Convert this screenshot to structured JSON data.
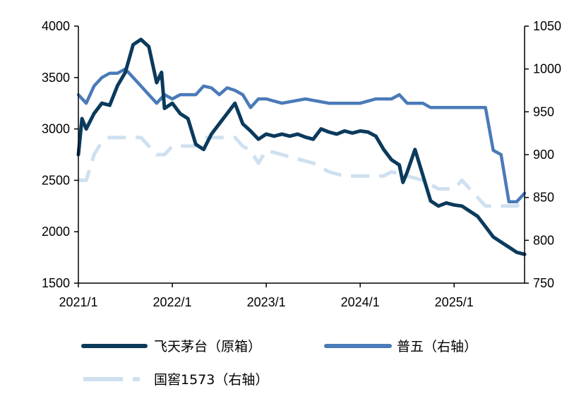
{
  "chart_data": {
    "type": "line",
    "title": "",
    "xlabel": "",
    "ylabel": "",
    "x_ticks": [
      "2021/1",
      "2022/1",
      "2023/1",
      "2024/1",
      "2025/1"
    ],
    "x_range": [
      "2021-01",
      "2025-10"
    ],
    "y_left": {
      "min": 1500,
      "max": 4000,
      "ticks": [
        "1500",
        "2000",
        "2500",
        "3000",
        "3500",
        "4000"
      ]
    },
    "y_right": {
      "min": 750,
      "max": 1050,
      "ticks": [
        "750",
        "800",
        "850",
        "900",
        "950",
        "1000",
        "1050"
      ]
    },
    "grid": false,
    "legend_position": "bottom",
    "series": [
      {
        "name": "飞天茅台（原箱）",
        "axis": "left",
        "color": "#0b3a5c",
        "style": "solid",
        "points": [
          [
            "2021-01",
            2750
          ],
          [
            "2021-01-15",
            3100
          ],
          [
            "2021-02",
            3000
          ],
          [
            "2021-03",
            3150
          ],
          [
            "2021-04",
            3250
          ],
          [
            "2021-05",
            3230
          ],
          [
            "2021-06",
            3420
          ],
          [
            "2021-07",
            3550
          ],
          [
            "2021-08",
            3820
          ],
          [
            "2021-09",
            3870
          ],
          [
            "2021-10",
            3800
          ],
          [
            "2021-11",
            3450
          ],
          [
            "2021-11-20",
            3550
          ],
          [
            "2021-12",
            3200
          ],
          [
            "2022-01",
            3250
          ],
          [
            "2022-02",
            3150
          ],
          [
            "2022-03",
            3100
          ],
          [
            "2022-04",
            2850
          ],
          [
            "2022-05",
            2800
          ],
          [
            "2022-06",
            2950
          ],
          [
            "2022-07",
            3050
          ],
          [
            "2022-08",
            3150
          ],
          [
            "2022-09",
            3250
          ],
          [
            "2022-10",
            3050
          ],
          [
            "2022-11",
            2980
          ],
          [
            "2022-12",
            2900
          ],
          [
            "2023-01",
            2950
          ],
          [
            "2023-02",
            2930
          ],
          [
            "2023-03",
            2950
          ],
          [
            "2023-04",
            2930
          ],
          [
            "2023-05",
            2950
          ],
          [
            "2023-06",
            2920
          ],
          [
            "2023-07",
            2900
          ],
          [
            "2023-08",
            3000
          ],
          [
            "2023-09",
            2970
          ],
          [
            "2023-10",
            2950
          ],
          [
            "2023-11",
            2980
          ],
          [
            "2023-12",
            2960
          ],
          [
            "2024-01",
            2980
          ],
          [
            "2024-02",
            2970
          ],
          [
            "2024-03",
            2930
          ],
          [
            "2024-04",
            2800
          ],
          [
            "2024-05",
            2700
          ],
          [
            "2024-06",
            2650
          ],
          [
            "2024-06-15",
            2480
          ],
          [
            "2024-07",
            2580
          ],
          [
            "2024-08",
            2800
          ],
          [
            "2024-09",
            2550
          ],
          [
            "2024-10",
            2300
          ],
          [
            "2024-11",
            2250
          ],
          [
            "2024-12",
            2280
          ],
          [
            "2025-01",
            2260
          ],
          [
            "2025-02",
            2250
          ],
          [
            "2025-03",
            2200
          ],
          [
            "2025-04",
            2150
          ],
          [
            "2025-05",
            2050
          ],
          [
            "2025-06",
            1950
          ],
          [
            "2025-07",
            1900
          ],
          [
            "2025-08",
            1850
          ],
          [
            "2025-09",
            1800
          ],
          [
            "2025-10",
            1780
          ]
        ]
      },
      {
        "name": "普五（右轴）",
        "axis": "right",
        "color": "#4a7ab8",
        "style": "solid",
        "points": [
          [
            "2021-01",
            970
          ],
          [
            "2021-02",
            960
          ],
          [
            "2021-03",
            980
          ],
          [
            "2021-04",
            990
          ],
          [
            "2021-05",
            995
          ],
          [
            "2021-06",
            995
          ],
          [
            "2021-07",
            1000
          ],
          [
            "2021-08",
            990
          ],
          [
            "2021-09",
            980
          ],
          [
            "2021-10",
            970
          ],
          [
            "2021-11",
            960
          ],
          [
            "2021-12",
            970
          ],
          [
            "2022-01",
            965
          ],
          [
            "2022-02",
            970
          ],
          [
            "2022-03",
            970
          ],
          [
            "2022-04",
            970
          ],
          [
            "2022-05",
            980
          ],
          [
            "2022-06",
            978
          ],
          [
            "2022-07",
            970
          ],
          [
            "2022-08",
            978
          ],
          [
            "2022-09",
            975
          ],
          [
            "2022-10",
            970
          ],
          [
            "2022-11",
            955
          ],
          [
            "2022-12",
            965
          ],
          [
            "2023-01",
            965
          ],
          [
            "2023-03",
            960
          ],
          [
            "2023-06",
            965
          ],
          [
            "2023-09",
            960
          ],
          [
            "2023-12",
            960
          ],
          [
            "2024-01",
            960
          ],
          [
            "2024-03",
            965
          ],
          [
            "2024-05",
            965
          ],
          [
            "2024-06",
            970
          ],
          [
            "2024-07",
            960
          ],
          [
            "2024-09",
            960
          ],
          [
            "2024-10",
            955
          ],
          [
            "2025-01",
            955
          ],
          [
            "2025-05",
            955
          ],
          [
            "2025-06",
            905
          ],
          [
            "2025-07",
            900
          ],
          [
            "2025-08",
            845
          ],
          [
            "2025-09",
            845
          ],
          [
            "2025-10",
            855
          ]
        ]
      },
      {
        "name": "国窖1573（右轴）",
        "axis": "right",
        "color": "#cfe0f0",
        "style": "dashed",
        "points": [
          [
            "2021-01",
            870
          ],
          [
            "2021-02",
            870
          ],
          [
            "2021-03",
            900
          ],
          [
            "2021-04",
            915
          ],
          [
            "2021-05",
            920
          ],
          [
            "2021-06",
            920
          ],
          [
            "2021-07",
            920
          ],
          [
            "2021-08",
            920
          ],
          [
            "2021-09",
            920
          ],
          [
            "2021-10",
            910
          ],
          [
            "2021-11",
            900
          ],
          [
            "2021-12",
            900
          ],
          [
            "2022-01",
            910
          ],
          [
            "2022-02",
            910
          ],
          [
            "2022-03",
            910
          ],
          [
            "2022-04",
            910
          ],
          [
            "2022-05",
            920
          ],
          [
            "2022-06",
            920
          ],
          [
            "2022-07",
            920
          ],
          [
            "2022-08",
            920
          ],
          [
            "2022-09",
            920
          ],
          [
            "2022-10",
            910
          ],
          [
            "2022-11",
            905
          ],
          [
            "2022-12",
            890
          ],
          [
            "2023-01",
            905
          ],
          [
            "2023-03",
            900
          ],
          [
            "2023-05",
            895
          ],
          [
            "2023-07",
            890
          ],
          [
            "2023-09",
            880
          ],
          [
            "2023-11",
            875
          ],
          [
            "2024-01",
            875
          ],
          [
            "2024-04",
            875
          ],
          [
            "2024-05",
            880
          ],
          [
            "2024-07",
            875
          ],
          [
            "2024-09",
            870
          ],
          [
            "2024-11",
            860
          ],
          [
            "2025-01",
            860
          ],
          [
            "2025-02",
            870
          ],
          [
            "2025-03",
            860
          ],
          [
            "2025-05",
            840
          ],
          [
            "2025-07",
            840
          ],
          [
            "2025-09",
            840
          ],
          [
            "2025-10",
            845
          ]
        ]
      }
    ]
  }
}
